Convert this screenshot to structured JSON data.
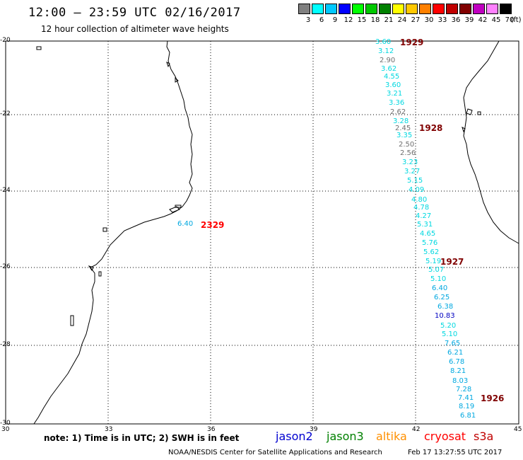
{
  "header": {
    "title": "12:00 — 23:59 UTC 02/16/2017",
    "subtitle": "12 hour collection of altimeter wave heights"
  },
  "legend": {
    "unit": "(ft)",
    "labels": [
      "3",
      "6",
      "9",
      "12",
      "15",
      "18",
      "21",
      "24",
      "27",
      "30",
      "33",
      "36",
      "39",
      "42",
      "45",
      "70"
    ],
    "colors": [
      "#808080",
      "#00ffff",
      "#00c8ff",
      "#0000ff",
      "#00ff00",
      "#00c800",
      "#008000",
      "#ffff00",
      "#ffc800",
      "#ff8000",
      "#ff0000",
      "#c00000",
      "#800000",
      "#c000c0",
      "#ff80ff",
      "#000000"
    ]
  },
  "axes": {
    "lat_labels": [
      "-20",
      "-22",
      "-24",
      "-26",
      "-28",
      "-30"
    ],
    "lon_labels": [
      "30",
      "33",
      "36",
      "39",
      "42",
      "45"
    ]
  },
  "footer": {
    "note": "note: 1) Time is in UTC; 2) SWH is in feet",
    "satellites": [
      {
        "name": "jason2",
        "color": "#0000d0"
      },
      {
        "name": "jason3",
        "color": "#008000"
      },
      {
        "name": "altika",
        "color": "#ff9000"
      },
      {
        "name": "cryosat",
        "color": "#ff0000"
      },
      {
        "name": "s3a",
        "color": "#c00000"
      }
    ],
    "credit": "NOAA/NESDIS Center for Satellite Applications and Research",
    "timestamp": "Feb 17 13:27:55 UTC 2017"
  },
  "passes": [
    {
      "label": "1929",
      "color": "#800000"
    },
    {
      "label": "1928",
      "color": "#800000"
    },
    {
      "label": "2329",
      "color": "#ff0000"
    },
    {
      "label": "1927",
      "color": "#800000"
    },
    {
      "label": "1926",
      "color": "#800000"
    }
  ],
  "wave_heights": [
    {
      "value": "3.60",
      "color": "#00d8e0"
    },
    {
      "value": "3.12",
      "color": "#00d8e0"
    },
    {
      "value": "2.90",
      "color": "#707070"
    },
    {
      "value": "3.62",
      "color": "#00d8e0"
    },
    {
      "value": "4.55",
      "color": "#00d8e0"
    },
    {
      "value": "3.60",
      "color": "#00d8e0"
    },
    {
      "value": "3.21",
      "color": "#00d8e0"
    },
    {
      "value": "3.36",
      "color": "#00d8e0"
    },
    {
      "value": "2.62",
      "color": "#707070"
    },
    {
      "value": "3.28",
      "color": "#00d8e0"
    },
    {
      "value": "2.45",
      "color": "#707070"
    },
    {
      "value": "3.35",
      "color": "#00d8e0"
    },
    {
      "value": "2.50",
      "color": "#707070"
    },
    {
      "value": "2.56",
      "color": "#707070"
    },
    {
      "value": "3.23",
      "color": "#00d8e0"
    },
    {
      "value": "3.27",
      "color": "#00d8e0"
    },
    {
      "value": "5.15",
      "color": "#00d8e0"
    },
    {
      "value": "4.09",
      "color": "#00d8e0"
    },
    {
      "value": "4.80",
      "color": "#00d8e0"
    },
    {
      "value": "4.78",
      "color": "#00d8e0"
    },
    {
      "value": "4.27",
      "color": "#00d8e0"
    },
    {
      "value": "5.31",
      "color": "#00d8e0"
    },
    {
      "value": "4.65",
      "color": "#00d8e0"
    },
    {
      "value": "5.76",
      "color": "#00d8e0"
    },
    {
      "value": "5.62",
      "color": "#00d8e0"
    },
    {
      "value": "5.19",
      "color": "#00d8e0"
    },
    {
      "value": "5.07",
      "color": "#00d8e0"
    },
    {
      "value": "5.10",
      "color": "#00d8e0"
    },
    {
      "value": "6.40",
      "color": "#00a8e0"
    },
    {
      "value": "6.25",
      "color": "#00a8e0"
    },
    {
      "value": "6.38",
      "color": "#00a8e0"
    },
    {
      "value": "10.83",
      "color": "#0000c0"
    },
    {
      "value": "5.20",
      "color": "#00d8e0"
    },
    {
      "value": "5.10",
      "color": "#00d8e0"
    },
    {
      "value": "7.65",
      "color": "#00a8e0"
    },
    {
      "value": "6.21",
      "color": "#00a8e0"
    },
    {
      "value": "6.78",
      "color": "#00a8e0"
    },
    {
      "value": "8.21",
      "color": "#00a8e0"
    },
    {
      "value": "8.03",
      "color": "#00a8e0"
    },
    {
      "value": "7.28",
      "color": "#00a8e0"
    },
    {
      "value": "7.41",
      "color": "#00a8e0"
    },
    {
      "value": "8.19",
      "color": "#00a8e0"
    },
    {
      "value": "6.81",
      "color": "#00a8e0"
    },
    {
      "value": "6.40",
      "color": "#00a8e0"
    }
  ]
}
